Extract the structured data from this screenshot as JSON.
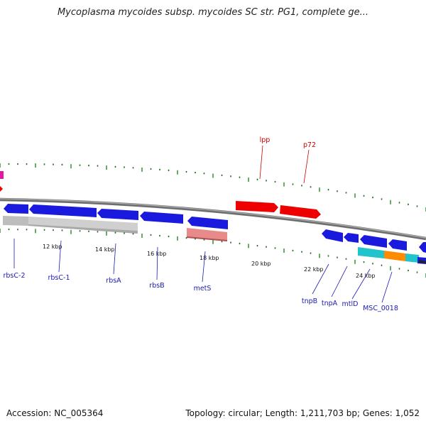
{
  "title": "Mycoplasma mycoides subsp. mycoides SC str. PG1, complete ge...",
  "footer": {
    "accession": "Accession: NC_005364",
    "summary": "Topology: circular; Length: 1,211,703 bp; Genes: 1,052"
  },
  "scale_ticks": [
    "12 kbp",
    "14 kbp",
    "16 kbp",
    "18 kbp",
    "20 kbp",
    "22 kbp",
    "24 kbp"
  ],
  "colors": {
    "backbone": "#7a7a7a",
    "forward_gene": "#ee0000",
    "reverse_gene": "#1a1adf",
    "reverse_label": "#1a1ab0",
    "forward_label": "#cc0000",
    "tick_major": "#228b22",
    "tick_minor": "#1c6e1c",
    "pseudo_gray": "#bdbdbd",
    "rna_pink": "#e88a8a",
    "cyan": "#22c4cc",
    "orange": "#ff8c00",
    "magenta": "#e01aa0"
  },
  "forward_genes": [
    {
      "name": "lpp"
    },
    {
      "name": "p72"
    }
  ],
  "reverse_genes": [
    {
      "name": "rbsC-2"
    },
    {
      "name": "rbsC-1"
    },
    {
      "name": "rbsA"
    },
    {
      "name": "rbsB"
    },
    {
      "name": "metS"
    },
    {
      "name": "tnpB"
    },
    {
      "name": "tnpA"
    },
    {
      "name": "mtlD"
    },
    {
      "name": "MSC_0018"
    }
  ]
}
